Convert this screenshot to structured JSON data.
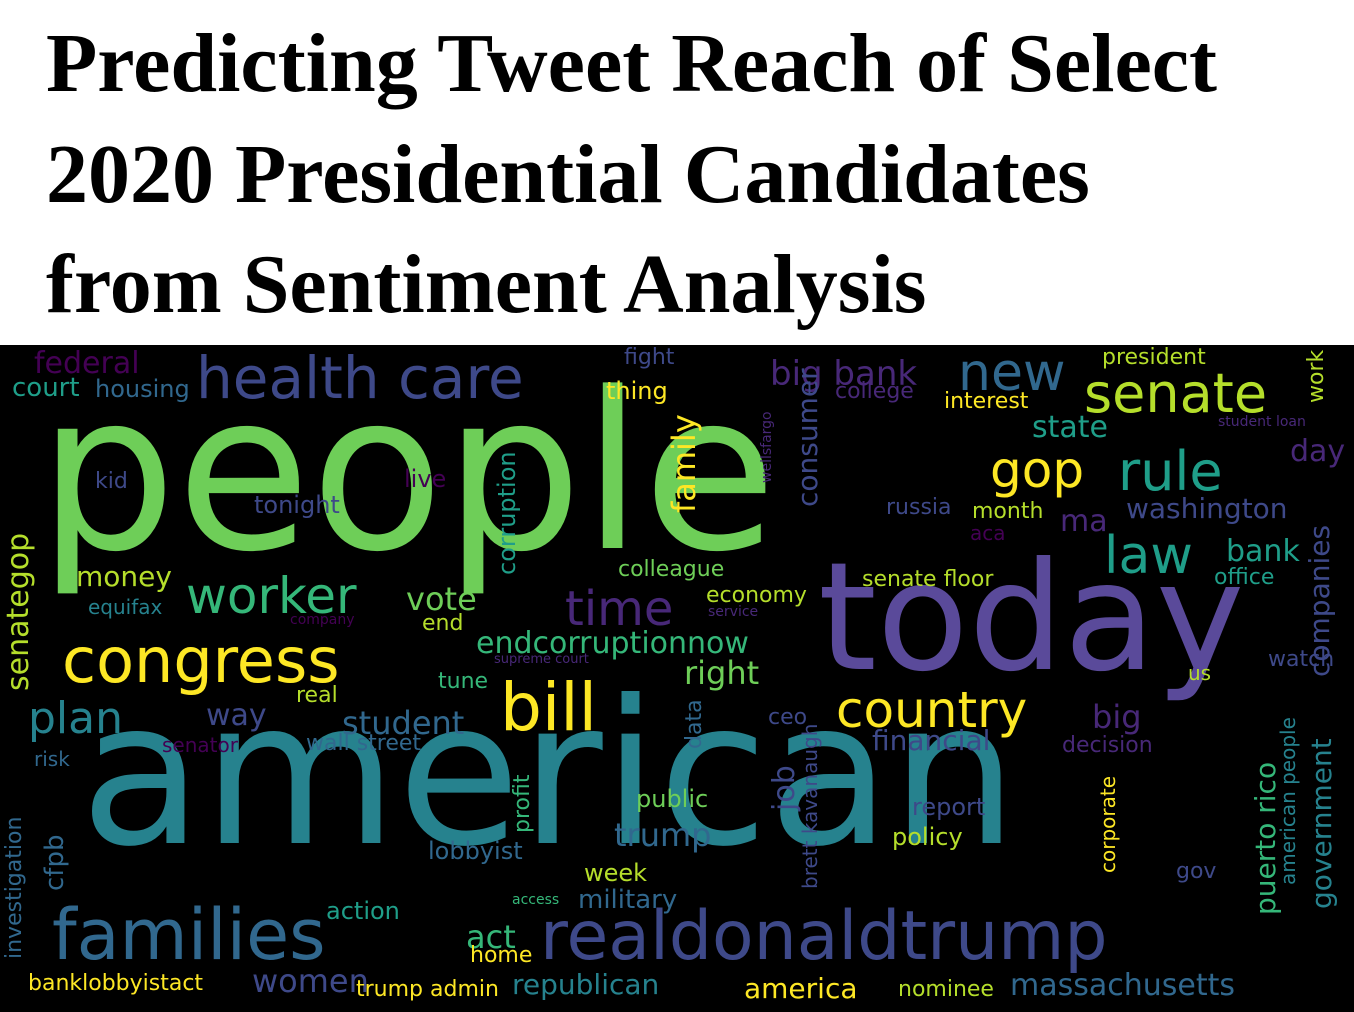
{
  "title": {
    "line1": "Predicting Tweet Reach of Select",
    "line2": "2020 Presidential Candidates",
    "line3": "from Sentiment Analysis"
  },
  "cloud": {
    "people": "people",
    "american": "american",
    "today": "today",
    "families": "families",
    "realdonaldtrump": "realdonaldtrump",
    "health_care": "health care",
    "congress": "congress",
    "bill": "bill",
    "senate": "senate",
    "worker": "worker",
    "rule": "rule",
    "country": "country",
    "new": "new",
    "gop": "gop",
    "law": "law",
    "plan": "plan",
    "time": "time",
    "federal": "federal",
    "court": "court",
    "housing": "housing",
    "fight": "fight",
    "thing": "thing",
    "big_bank": "big bank",
    "college": "college",
    "president": "president",
    "work": "work",
    "interest": "interest",
    "state": "state",
    "student_loan": "student loan",
    "day": "day",
    "kid": "kid",
    "live": "live",
    "tonight": "tonight",
    "corruption": "corruption",
    "family": "family",
    "wellsfargo": "wellsfargo",
    "consumer": "consumer",
    "russia": "russia",
    "month": "month",
    "ma": "ma",
    "washington": "washington",
    "aca": "aca",
    "companies": "companies",
    "senategop": "senategop",
    "money": "money",
    "equifax": "equifax",
    "vote": "vote",
    "company": "company",
    "end": "end",
    "colleague": "colleague",
    "economy": "economy",
    "service": "service",
    "senate_floor": "senate floor",
    "bank": "bank",
    "office": "office",
    "endcorruptionnow": "endcorruptionnow",
    "supreme_court": "supreme court",
    "watch": "watch",
    "us": "us",
    "tune": "tune",
    "right": "right",
    "real": "real",
    "way": "way",
    "student": "student",
    "data": "data",
    "ceo": "ceo",
    "brett_kavanaugh": "brett kavanaugh",
    "big": "big",
    "financial": "financial",
    "decision": "decision",
    "senator": "senator",
    "wall_street": "wall street",
    "risk": "risk",
    "job": "job",
    "profit": "profit",
    "public": "public",
    "report": "report",
    "corporate": "corporate",
    "puerto_rico": "puerto rico",
    "american_people": "american people",
    "government": "government",
    "investigation": "investigation",
    "cfpb": "cfpb",
    "trump": "trump",
    "policy": "policy",
    "lobbyist": "lobbyist",
    "week": "week",
    "gov": "gov",
    "action": "action",
    "access": "access",
    "military": "military",
    "act": "act",
    "home": "home",
    "banklobbyistact": "banklobbyistact",
    "women": "women",
    "trump_admin": "trump admin",
    "republican": "republican",
    "america": "america",
    "nominee": "nominee",
    "massachusetts": "massachusetts"
  },
  "colors": {
    "yellow": "#fde725",
    "lime": "#b5de2b",
    "green": "#6ece58",
    "green2": "#35b779",
    "teal": "#1f9e89",
    "teal2": "#26828e",
    "blue": "#31688e",
    "indigo": "#3e4989",
    "purple": "#482878",
    "dark_purple": "#440154",
    "background": "#000000"
  }
}
